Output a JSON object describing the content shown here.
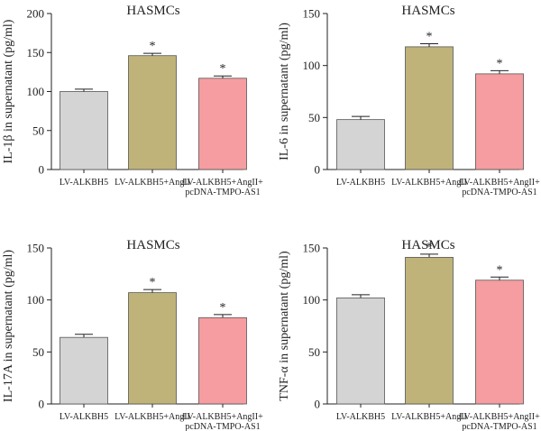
{
  "chart_data": [
    {
      "type": "bar",
      "title": "HASMCs",
      "ylabel": "IL-1β in supernatant (pg/ml)",
      "ylim": [
        0,
        200
      ],
      "yticks": [
        0,
        50,
        100,
        150,
        200
      ],
      "categories": [
        [
          "LV-ALKBH5"
        ],
        [
          "LV-ALKBH5+AngII"
        ],
        [
          "LV-ALKBH5+AngII+",
          "pcDNA-TMPO-AS1"
        ]
      ],
      "values": [
        100,
        146,
        117
      ],
      "errors": [
        3,
        3,
        3
      ],
      "significance": [
        "",
        "*",
        "*"
      ],
      "colors": [
        "#d4d4d4",
        "#bfb37a",
        "#f59da0"
      ]
    },
    {
      "type": "bar",
      "title": "HASMCs",
      "ylabel": "IL-6 in supernatant (pg/ml)",
      "ylim": [
        0,
        150
      ],
      "yticks": [
        0,
        50,
        100,
        150
      ],
      "categories": [
        [
          "LV-ALKBH5"
        ],
        [
          "LV-ALKBH5+AngII"
        ],
        [
          "LV-ALKBH5+AngII+",
          "pcDNA-TMPO-AS1"
        ]
      ],
      "values": [
        48,
        118,
        92
      ],
      "errors": [
        3,
        3,
        3
      ],
      "significance": [
        "",
        "*",
        "*"
      ],
      "colors": [
        "#d4d4d4",
        "#bfb37a",
        "#f59da0"
      ]
    },
    {
      "type": "bar",
      "title": "HASMCs",
      "ylabel": "IL-17A in supernatant (pg/ml)",
      "ylim": [
        0,
        150
      ],
      "yticks": [
        0,
        50,
        100,
        150
      ],
      "categories": [
        [
          "LV-ALKBH5"
        ],
        [
          "LV-ALKBH5+AngII"
        ],
        [
          "LV-ALKBH5+AngII+",
          "pcDNA-TMPO-AS1"
        ]
      ],
      "values": [
        64,
        107,
        83
      ],
      "errors": [
        3,
        3,
        3
      ],
      "significance": [
        "",
        "*",
        "*"
      ],
      "colors": [
        "#d4d4d4",
        "#bfb37a",
        "#f59da0"
      ]
    },
    {
      "type": "bar",
      "title": "HASMCs",
      "ylabel": "TNF-α in supernatant (pg/ml)",
      "ylim": [
        0,
        150
      ],
      "yticks": [
        0,
        50,
        100,
        150
      ],
      "categories": [
        [
          "LV-ALKBH5"
        ],
        [
          "LV-ALKBH5+AngII"
        ],
        [
          "LV-ALKBH5+AngII+",
          "pcDNA-TMPO-AS1"
        ]
      ],
      "values": [
        102,
        141,
        119
      ],
      "errors": [
        3,
        3,
        3
      ],
      "significance": [
        "",
        "*",
        "*"
      ],
      "colors": [
        "#d4d4d4",
        "#bfb37a",
        "#f59da0"
      ]
    }
  ]
}
